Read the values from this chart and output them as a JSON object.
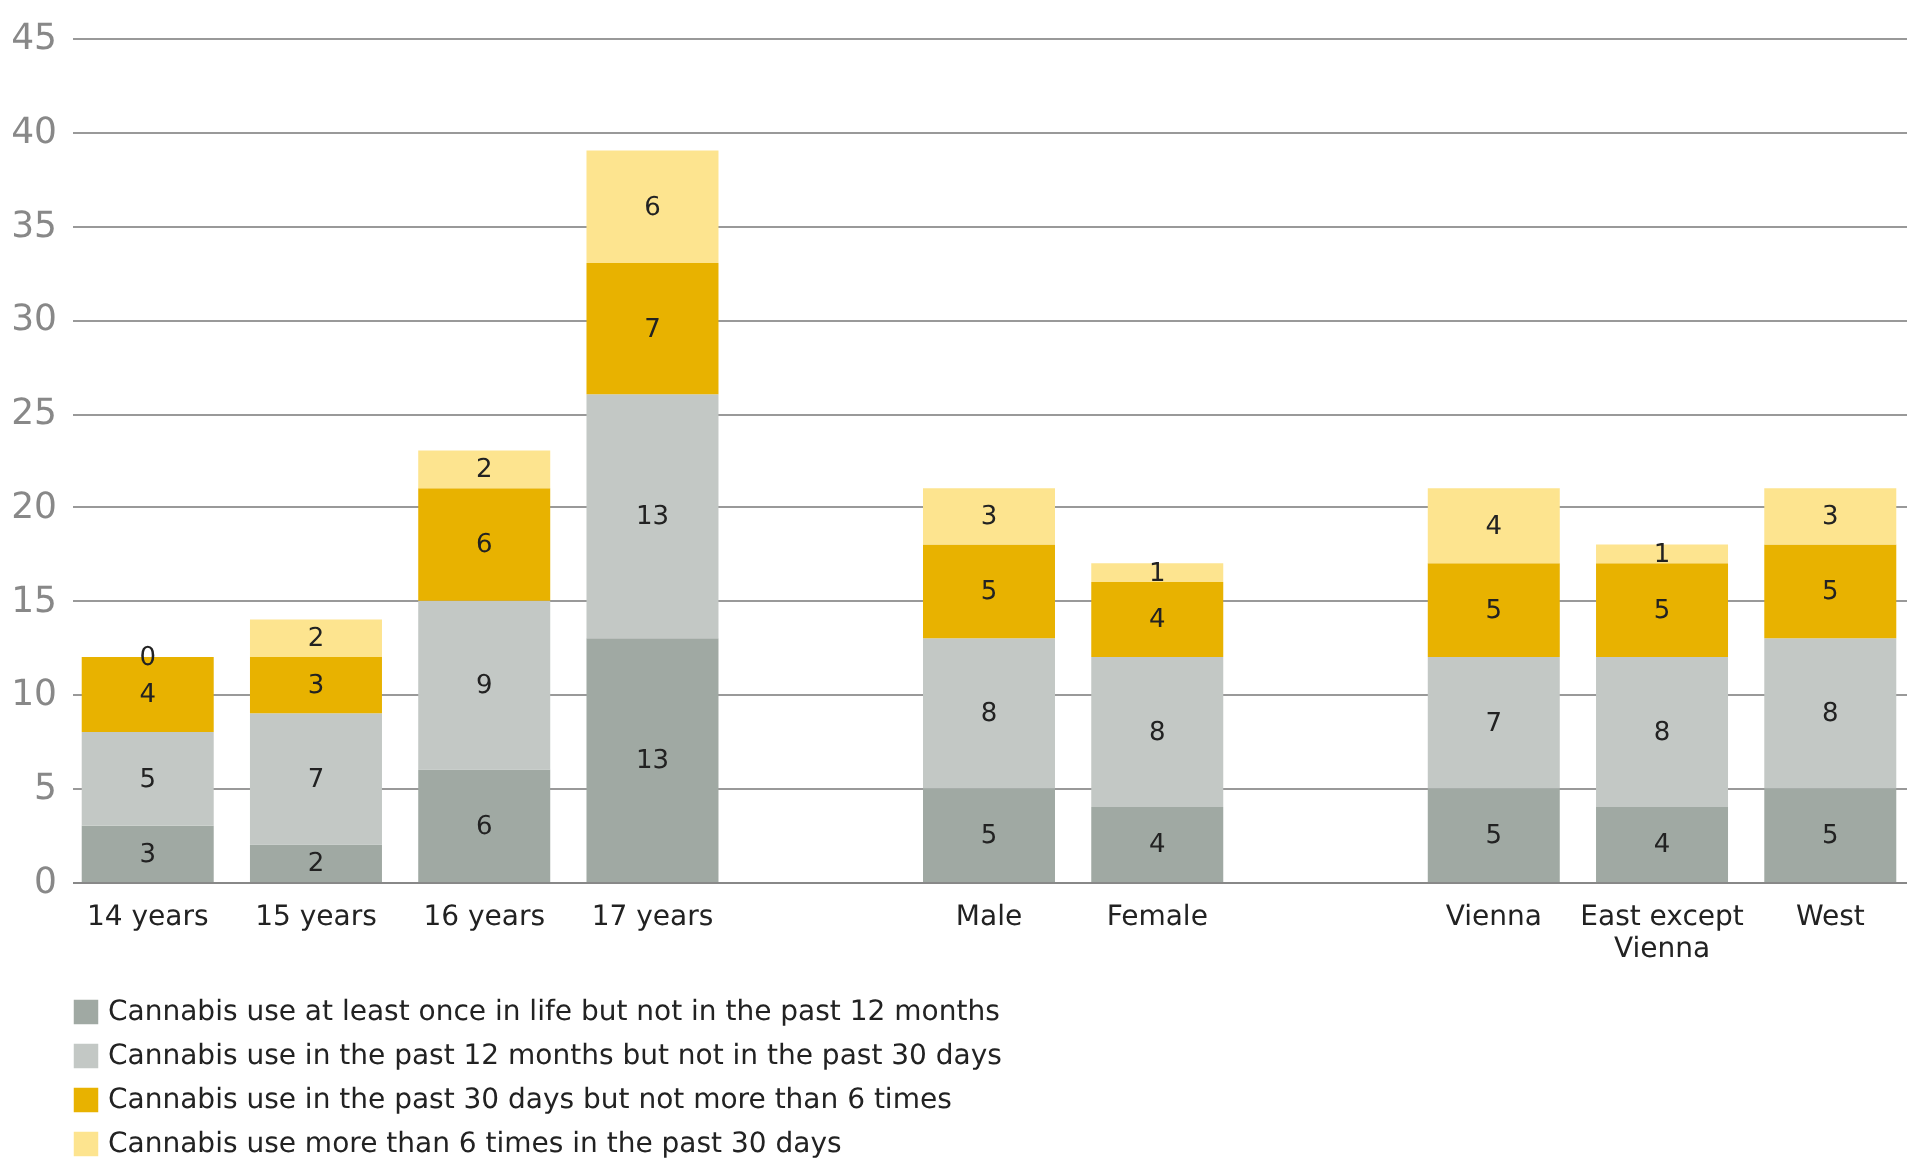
{
  "chart_data": {
    "type": "bar",
    "stacked": true,
    "data_labels": true,
    "grid": "y",
    "legend": "bottom",
    "categories": [
      "14 years",
      "15 years",
      "16 years",
      "17 years",
      null,
      "Male",
      "Female",
      null,
      "Vienna",
      "East except\nVienna",
      "West"
    ],
    "ylim": [
      0,
      45
    ],
    "yticks": [
      0,
      5,
      10,
      15,
      20,
      25,
      30,
      35,
      40,
      45
    ],
    "series": [
      {
        "name": "Cannabis use at least once in life but not in the past 12 months",
        "color": "#a0a9a3",
        "values": [
          3,
          2,
          6,
          13,
          null,
          5,
          4,
          null,
          5,
          4,
          5
        ]
      },
      {
        "name": "Cannabis use in the past 12 months but not in the past 30 days",
        "color": "#c3c8c5",
        "values": [
          5,
          7,
          9,
          13,
          null,
          8,
          8,
          null,
          7,
          8,
          8
        ]
      },
      {
        "name": "Cannabis use in the past 30 days but not more than 6 times",
        "color": "#e8b200",
        "values": [
          4,
          3,
          6,
          7,
          null,
          5,
          4,
          null,
          5,
          5,
          5
        ]
      },
      {
        "name": "Cannabis use more than 6 times in the past 30 days",
        "color": "#fde48f",
        "values": [
          0,
          2,
          2,
          6,
          null,
          3,
          1,
          null,
          4,
          1,
          3
        ]
      }
    ]
  }
}
